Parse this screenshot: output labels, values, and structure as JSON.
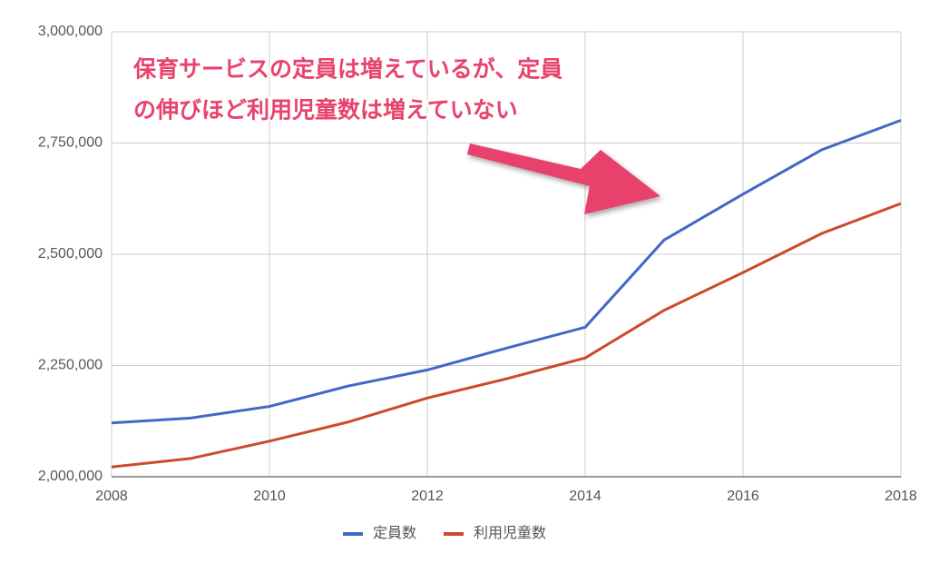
{
  "chart_data": {
    "type": "line",
    "annotation": [
      "保育サービスの定員は増えているが、定員",
      "の伸びほど利用児童数は増えていない"
    ],
    "x": [
      2008,
      2009,
      2010,
      2011,
      2012,
      2013,
      2014,
      2015,
      2016,
      2017,
      2018
    ],
    "series": [
      {
        "name": "定員数",
        "color": "#4367c6",
        "values": [
          2121000,
          2132000,
          2158000,
          2204000,
          2240000,
          2289000,
          2336000,
          2532000,
          2635000,
          2735000,
          2801000
        ]
      },
      {
        "name": "利用児童数",
        "color": "#cc4a2b",
        "values": [
          2022000,
          2041000,
          2080000,
          2123000,
          2177000,
          2220000,
          2267000,
          2374000,
          2459000,
          2547000,
          2614000
        ]
      }
    ],
    "xlim": [
      2008,
      2018
    ],
    "xticks": [
      2008,
      2010,
      2012,
      2014,
      2016,
      2018
    ],
    "ylim": [
      2000000,
      3000000
    ],
    "yticks": [
      {
        "value": 2000000,
        "label": "2,000,000"
      },
      {
        "value": 2250000,
        "label": "2,250,000"
      },
      {
        "value": 2500000,
        "label": "2,500,000"
      },
      {
        "value": 2750000,
        "label": "2,750,000"
      },
      {
        "value": 3000000,
        "label": "3,000,000"
      }
    ],
    "grid": true,
    "legend": "bottom"
  }
}
